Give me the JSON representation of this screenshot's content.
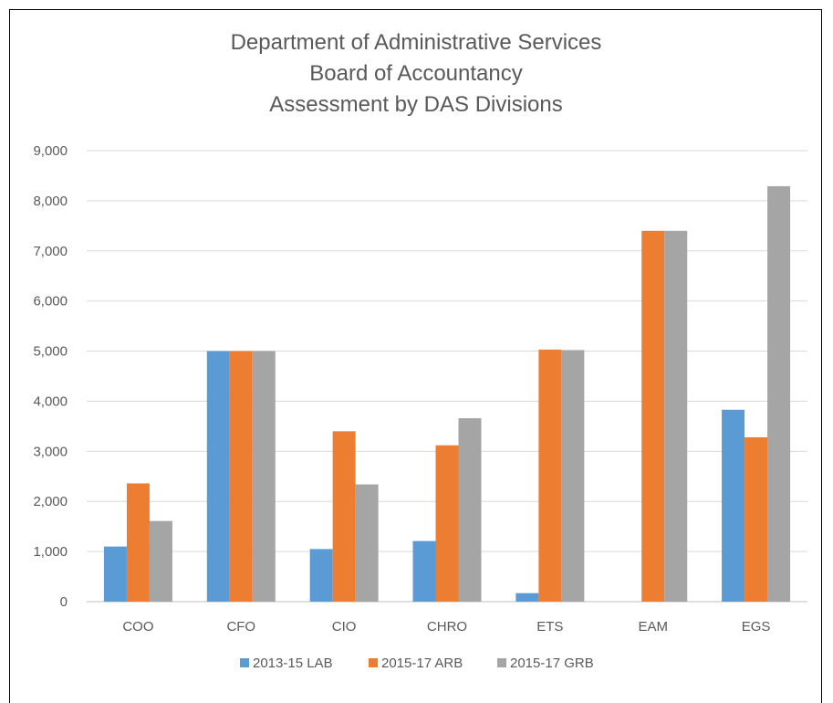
{
  "chart_data": {
    "type": "bar",
    "title_lines": [
      "Department of Administrative Services",
      "Board of Accountancy",
      "Assessment by DAS Divisions"
    ],
    "categories": [
      "COO",
      "CFO",
      "CIO",
      "CHRO",
      "ETS",
      "EAM",
      "EGS"
    ],
    "series": [
      {
        "name": "2013-15 LAB",
        "color": "#5B9BD5",
        "values": [
          1100,
          5000,
          1050,
          1210,
          170,
          0,
          3830
        ]
      },
      {
        "name": "2015-17 ARB",
        "color": "#ED7D31",
        "values": [
          2360,
          5000,
          3400,
          3120,
          5030,
          7400,
          3280
        ]
      },
      {
        "name": "2015-17 GRB",
        "color": "#A5A5A5",
        "values": [
          1610,
          5000,
          2340,
          3660,
          5020,
          7400,
          8290
        ]
      }
    ],
    "yticks": [
      "0",
      "1,000",
      "2,000",
      "3,000",
      "4,000",
      "5,000",
      "6,000",
      "7,000",
      "8,000",
      "9,000"
    ],
    "ylim": [
      0,
      9000
    ],
    "grid": true,
    "legend_position": "bottom",
    "xlabel": "",
    "ylabel": ""
  }
}
